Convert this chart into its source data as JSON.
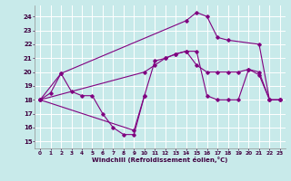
{
  "xlabel": "Windchill (Refroidissement éolien,°C)",
  "background_color": "#c8eaea",
  "grid_color": "#ffffff",
  "line_color": "#800080",
  "xlim": [
    -0.5,
    23.5
  ],
  "ylim": [
    14.5,
    24.8
  ],
  "yticks": [
    15,
    16,
    17,
    18,
    19,
    20,
    21,
    22,
    23,
    24
  ],
  "xticks": [
    0,
    1,
    2,
    3,
    4,
    5,
    6,
    7,
    8,
    9,
    10,
    11,
    12,
    13,
    14,
    15,
    16,
    17,
    18,
    19,
    20,
    21,
    22,
    23
  ],
  "series1_x": [
    0,
    1,
    2,
    3,
    4,
    5,
    6,
    7,
    8,
    9,
    10
  ],
  "series1_y": [
    18.0,
    18.5,
    19.9,
    18.6,
    18.3,
    18.3,
    17.0,
    16.0,
    15.5,
    15.5,
    18.3
  ],
  "series2_x": [
    0,
    9,
    10,
    11,
    12,
    13,
    14,
    15,
    16,
    17,
    18,
    19,
    20,
    21,
    22,
    23
  ],
  "series2_y": [
    18.0,
    15.8,
    18.3,
    20.8,
    21.0,
    21.3,
    21.5,
    21.5,
    18.3,
    18.0,
    18.0,
    18.0,
    20.2,
    19.8,
    18.0,
    18.0
  ],
  "series3_x": [
    0,
    2,
    14,
    15,
    16,
    17,
    18,
    21,
    22,
    23
  ],
  "series3_y": [
    18.0,
    19.9,
    23.7,
    24.3,
    24.0,
    22.5,
    22.3,
    22.0,
    18.0,
    18.0
  ],
  "series4_x": [
    0,
    10,
    11,
    12,
    13,
    14,
    15,
    16,
    17,
    18,
    19,
    20,
    21,
    22,
    23
  ],
  "series4_y": [
    18.0,
    20.0,
    20.5,
    21.0,
    21.3,
    21.5,
    20.5,
    20.0,
    20.0,
    20.0,
    20.0,
    20.2,
    20.0,
    18.0,
    18.0
  ]
}
